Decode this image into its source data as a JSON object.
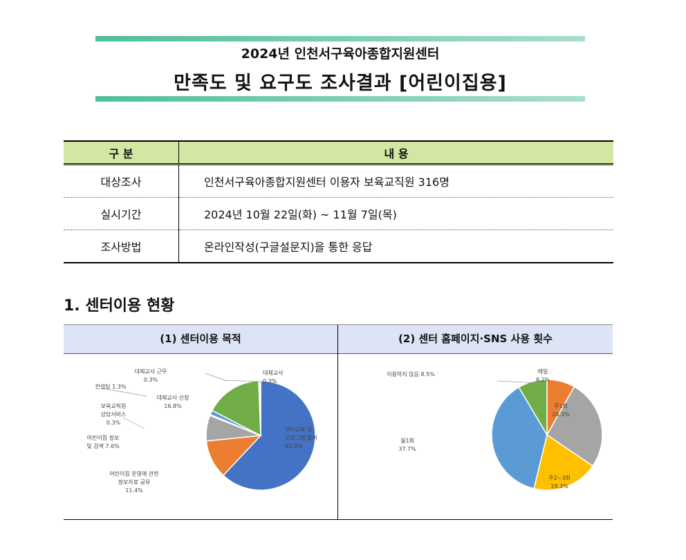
{
  "header": {
    "title_line1": "2024년 인천서구육아종합지원센터",
    "title_line2": "만족도 및 요구도 조사결과 [어린이집용]"
  },
  "info_table": {
    "headers": [
      "구 분",
      "내 용"
    ],
    "rows": [
      {
        "key": "대상조사",
        "value": "인천서구육아종합지원센터 이용자 보육교직원 316명"
      },
      {
        "key": "실시기간",
        "value": "2024년 10월 22일(화) ~ 11월 7일(목)"
      },
      {
        "key": "조사방법",
        "value": "온라인작성(구글설문지)을 통한 응답"
      }
    ]
  },
  "section": {
    "title": "1. 센터이용 현황"
  },
  "chart_data": [
    {
      "type": "pie",
      "title": "(1) 센터이용 목적",
      "slices": [
        {
          "label": [
            "센터교육 및",
            "프로그램 참여",
            "62.0%"
          ],
          "value": 62.0,
          "color": "#4472c4"
        },
        {
          "label": [
            "어린이집 운영에 관한",
            "정보자료 공유",
            "11.4%"
          ],
          "value": 11.4,
          "color": "#ed7d31"
        },
        {
          "label": [
            "어린이집 정보",
            "및 검색 7.6%"
          ],
          "value": 7.6,
          "color": "#a5a5a5"
        },
        {
          "label": [
            "보육교직원",
            "상담서비스",
            "0.3%"
          ],
          "value": 0.3,
          "color": "#ffc000"
        },
        {
          "label": [
            "컨설팅 1.3%"
          ],
          "value": 1.3,
          "color": "#5b9bd5"
        },
        {
          "label": [
            "대체교사 신청",
            "16.8%"
          ],
          "value": 16.8,
          "color": "#70ad47"
        },
        {
          "label": [
            "대체교사 근무",
            "0.3%"
          ],
          "value": 0.3,
          "color": "#264478"
        },
        {
          "label": [
            "대체교사",
            "0.3%"
          ],
          "value": 0.3,
          "color": "#9e480e"
        }
      ]
    },
    {
      "type": "pie",
      "title": "(2) 센터 홈페이지·SNS 사용 횟수",
      "slices": [
        {
          "label": [
            "매일",
            "8.2%"
          ],
          "value": 8.2,
          "color": "#ed7d31"
        },
        {
          "label": [
            "주1회",
            "26.3%"
          ],
          "value": 26.3,
          "color": "#a5a5a5"
        },
        {
          "label": [
            "주2~3회",
            "19.3%"
          ],
          "value": 19.3,
          "color": "#ffc000"
        },
        {
          "label": [
            "월1회",
            "37.7%"
          ],
          "value": 37.7,
          "color": "#5b9bd5"
        },
        {
          "label": [
            "이용하지 않음 8.5%"
          ],
          "value": 8.5,
          "color": "#70ad47"
        }
      ]
    }
  ]
}
